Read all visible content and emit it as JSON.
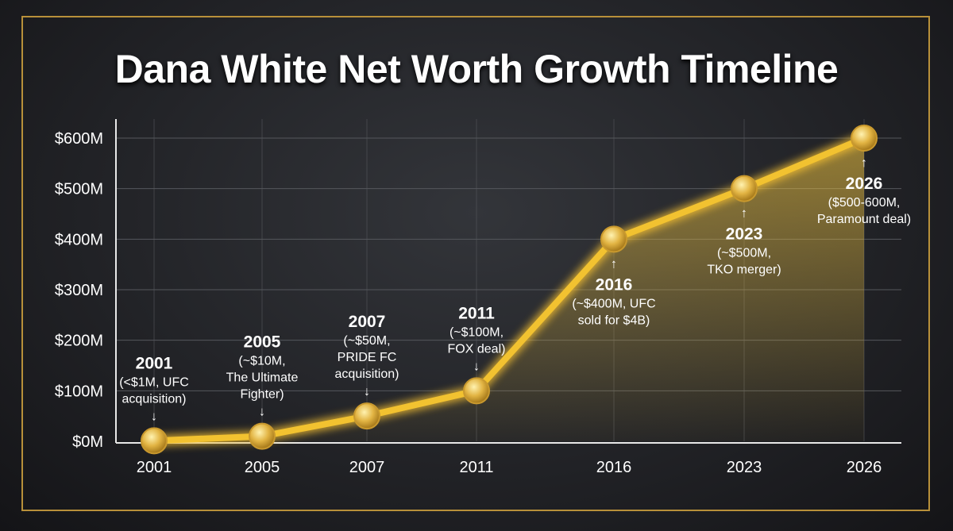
{
  "chart_data": {
    "type": "line",
    "title": "Dana White Net Worth Growth Timeline",
    "xlabel": "",
    "ylabel": "",
    "categories": [
      "2001",
      "2005",
      "2007",
      "2011",
      "2016",
      "2023",
      "2026"
    ],
    "values": [
      1,
      10,
      50,
      100,
      400,
      500,
      600
    ],
    "ylim": [
      0,
      600
    ],
    "yticks": [
      "$0M",
      "$100M",
      "$200M",
      "$300M",
      "$400M",
      "$500M",
      "$600M"
    ],
    "grid": true,
    "area_fill": true,
    "annotations": [
      {
        "year": "2001",
        "lines": [
          "(<$1M, UFC",
          "acquisition)"
        ],
        "position": "above"
      },
      {
        "year": "2005",
        "lines": [
          "(~$10M,",
          "The Ultimate",
          "Fighter)"
        ],
        "position": "above"
      },
      {
        "year": "2007",
        "lines": [
          "(~$50M,",
          "PRIDE FC",
          "acquisition)"
        ],
        "position": "above"
      },
      {
        "year": "2011",
        "lines": [
          "(~$100M,",
          "FOX deal)"
        ],
        "position": "above"
      },
      {
        "year": "2016",
        "lines": [
          "(~$400M, UFC",
          "sold for $4B)"
        ],
        "position": "below"
      },
      {
        "year": "2023",
        "lines": [
          "(~$500M,",
          "TKO merger)"
        ],
        "position": "below"
      },
      {
        "year": "2026",
        "lines": [
          "($500-600M,",
          "Paramount deal)"
        ],
        "position": "below"
      }
    ],
    "colors": {
      "line": "#f2c230",
      "marker": "#e0b341",
      "frame": "#b8903a",
      "grid": "#55575c"
    }
  }
}
